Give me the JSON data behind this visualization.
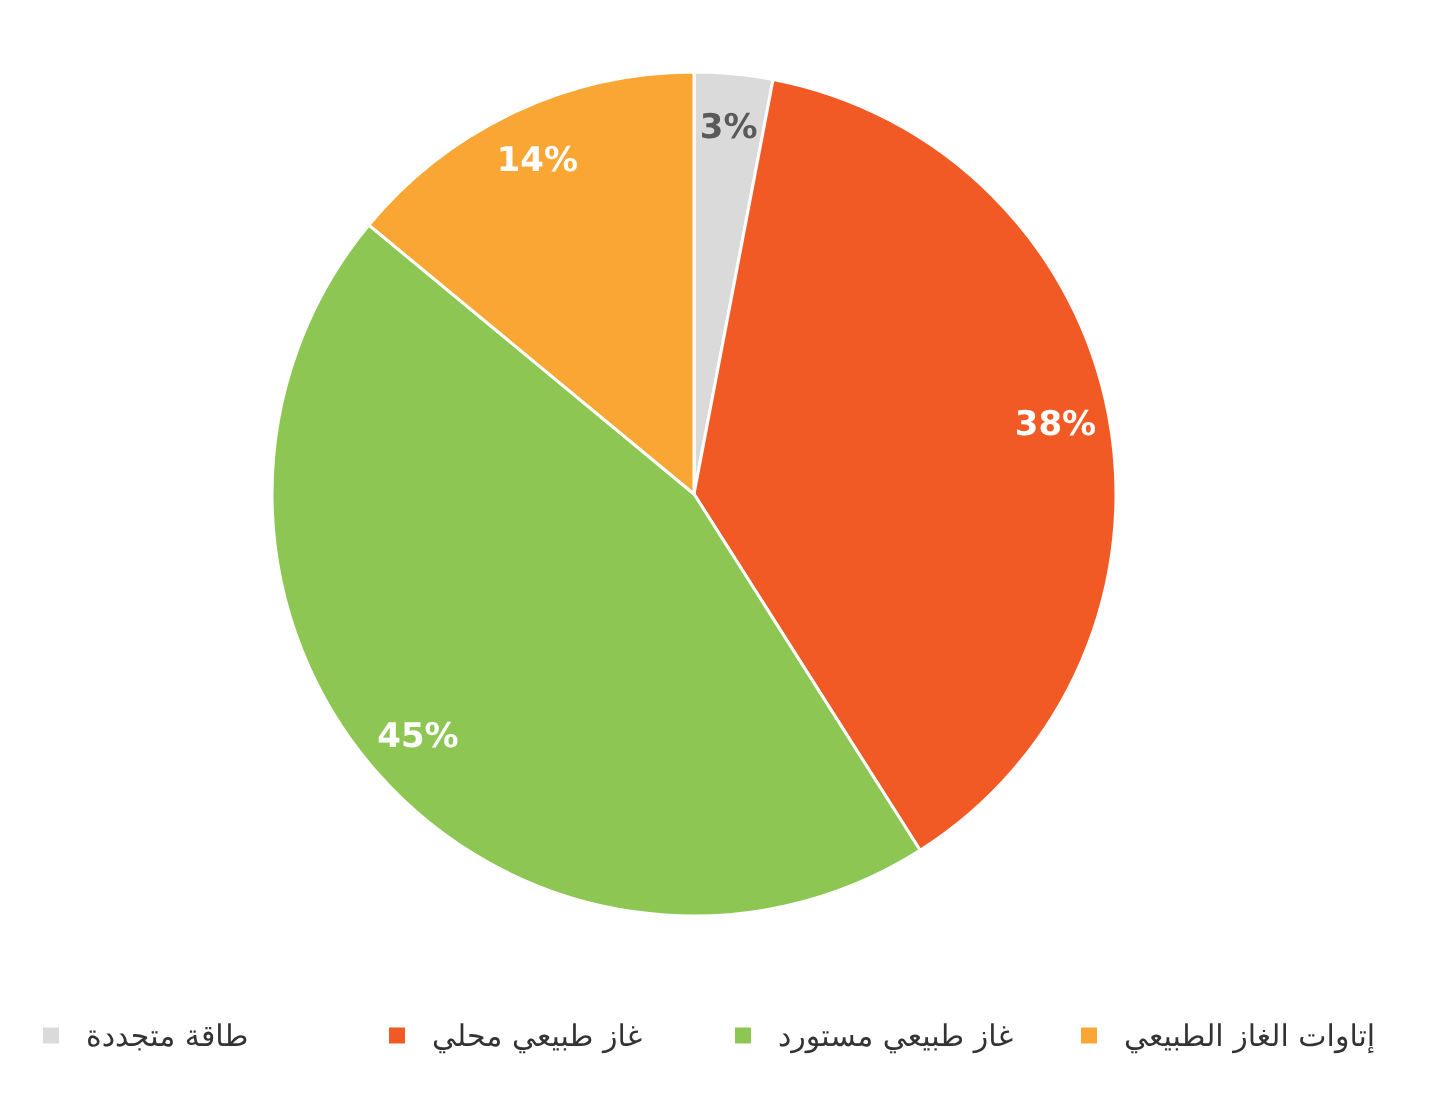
{
  "chart_data": {
    "type": "pie",
    "categories": [
      "طاقة متجددة",
      "غاز طبيعي محلي",
      "غاز طبيعي مستورد",
      "إتاوات الغاز الطبيعي"
    ],
    "values": [
      3,
      38,
      45,
      14
    ],
    "colors": [
      "#dadada",
      "#f15a24",
      "#8dc652",
      "#f9a634"
    ],
    "value_labels": [
      "3%",
      "38%",
      "45%",
      "14%"
    ],
    "legend": "bottom"
  }
}
